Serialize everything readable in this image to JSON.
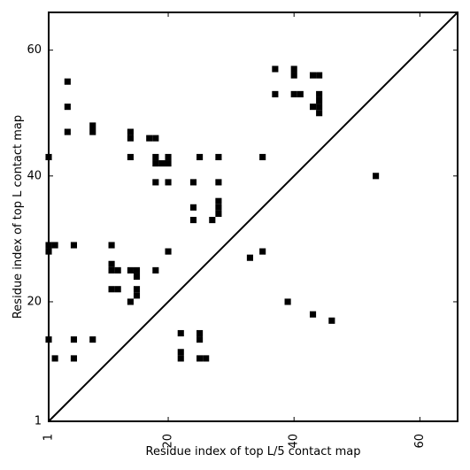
{
  "chart_data": {
    "type": "heatmap",
    "title": "",
    "xlabel": "Residue index of top L/5 contact map",
    "ylabel": "Residue index of top L contact map",
    "xlim": [
      1,
      66
    ],
    "ylim": [
      1,
      66
    ],
    "x_ticks": [
      1,
      20,
      40,
      60
    ],
    "y_ticks": [
      1,
      20,
      40,
      60
    ],
    "x_tick_labels": [
      "1",
      "20",
      "40",
      "60"
    ],
    "y_tick_labels": [
      "1",
      "20",
      "40",
      "60"
    ],
    "diagonal_line": true,
    "cell_color": "#000000",
    "background": "#ffffff",
    "cells": [
      [
        4,
        55
      ],
      [
        4,
        51
      ],
      [
        4,
        47
      ],
      [
        8,
        48
      ],
      [
        8,
        47
      ],
      [
        14,
        47
      ],
      [
        14,
        46
      ],
      [
        17,
        46
      ],
      [
        18,
        46
      ],
      [
        1,
        43
      ],
      [
        14,
        43
      ],
      [
        18,
        43
      ],
      [
        20,
        43
      ],
      [
        25,
        43
      ],
      [
        28,
        43
      ],
      [
        35,
        43
      ],
      [
        18,
        42
      ],
      [
        19,
        42
      ],
      [
        20,
        42
      ],
      [
        18,
        39
      ],
      [
        20,
        39
      ],
      [
        24,
        39
      ],
      [
        28,
        39
      ],
      [
        24,
        35
      ],
      [
        28,
        36
      ],
      [
        28,
        35
      ],
      [
        28,
        34
      ],
      [
        24,
        33
      ],
      [
        27,
        33
      ],
      [
        1,
        29
      ],
      [
        2,
        29
      ],
      [
        5,
        29
      ],
      [
        11,
        29
      ],
      [
        1,
        28
      ],
      [
        20,
        28
      ],
      [
        35,
        28
      ],
      [
        33,
        27
      ],
      [
        11,
        26
      ],
      [
        11,
        25
      ],
      [
        12,
        25
      ],
      [
        14,
        25
      ],
      [
        15,
        25
      ],
      [
        18,
        25
      ],
      [
        15,
        24
      ],
      [
        11,
        22
      ],
      [
        12,
        22
      ],
      [
        15,
        22
      ],
      [
        15,
        21
      ],
      [
        14,
        20
      ],
      [
        1,
        14
      ],
      [
        5,
        14
      ],
      [
        8,
        14
      ],
      [
        22,
        15
      ],
      [
        25,
        15
      ],
      [
        25,
        14
      ],
      [
        2,
        11
      ],
      [
        5,
        11
      ],
      [
        22,
        12
      ],
      [
        22,
        11
      ],
      [
        25,
        11
      ],
      [
        26,
        11
      ],
      [
        37,
        57
      ],
      [
        40,
        57
      ],
      [
        40,
        56
      ],
      [
        43,
        56
      ],
      [
        44,
        56
      ],
      [
        37,
        53
      ],
      [
        40,
        53
      ],
      [
        41,
        53
      ],
      [
        44,
        53
      ],
      [
        44,
        52
      ],
      [
        43,
        51
      ],
      [
        44,
        51
      ],
      [
        44,
        50
      ],
      [
        53,
        40
      ],
      [
        39,
        20
      ],
      [
        43,
        18
      ],
      [
        46,
        17
      ]
    ]
  }
}
